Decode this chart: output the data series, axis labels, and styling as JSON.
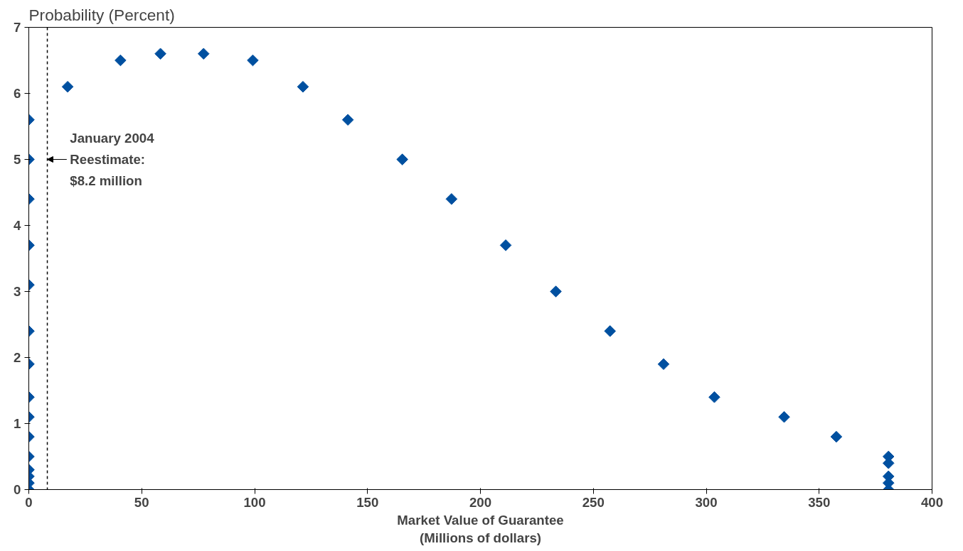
{
  "chart_data": {
    "type": "scatter",
    "ylabel": "Probability (Percent)",
    "xlabel": "Market Value of Guarantee\n(Millions of dollars)",
    "x": [
      0,
      0,
      0,
      0,
      0,
      0,
      0,
      0,
      0,
      0,
      0,
      0,
      0,
      0,
      0,
      17.2,
      40.6,
      58.3,
      77.4,
      99.2,
      121.4,
      141.3,
      165.4,
      187.2,
      211.2,
      233.4,
      257.4,
      281.1,
      303.6,
      334.5,
      357.6,
      380.7,
      380.7,
      380.7,
      380.7,
      380.7
    ],
    "series": [
      {
        "color": "#0050a0",
        "values": [
          5.6,
          5.0,
          4.4,
          3.7,
          3.1,
          2.4,
          1.9,
          1.4,
          1.1,
          0.8,
          0.5,
          0.3,
          0.2,
          0.1,
          0.0,
          6.1,
          6.5,
          6.6,
          6.6,
          6.5,
          6.1,
          5.6,
          5.0,
          4.4,
          3.7,
          3.0,
          2.4,
          1.9,
          1.4,
          1.1,
          0.8,
          0.5,
          0.4,
          0.2,
          0.1,
          0.0
        ]
      }
    ],
    "xlim": [
      0,
      400
    ],
    "ylim": [
      0,
      7
    ],
    "xticks": [
      0,
      50,
      100,
      150,
      200,
      250,
      300,
      350,
      400
    ],
    "yticks": [
      0,
      1,
      2,
      3,
      4,
      5,
      6,
      7
    ],
    "ref_lines": [
      {
        "axis": "x",
        "value": 8.2,
        "label": null,
        "color": "#000000",
        "line_style": "dashed"
      }
    ],
    "annotations": [
      {
        "text": "January 2004\nReestimate:\n$8.2 million",
        "x": 8.2,
        "y": 5
      }
    ],
    "marker": "diamond",
    "grid": false
  }
}
